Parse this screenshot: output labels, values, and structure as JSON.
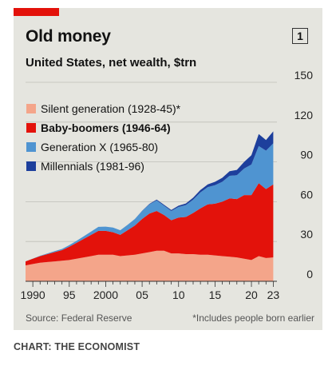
{
  "header": {
    "title": "Old money",
    "badge": "1"
  },
  "chart_data": {
    "type": "area",
    "stacked": true,
    "title": "Old money",
    "subtitle": "United States, net wealth, $trn",
    "xlabel": "",
    "ylabel": "",
    "xlim": [
      1989,
      2023.5
    ],
    "ylim": [
      0,
      150
    ],
    "x_ticks": [
      1990,
      1991,
      1992,
      1993,
      1994,
      1995,
      1996,
      1997,
      1998,
      1999,
      2000,
      2001,
      2002,
      2003,
      2004,
      2005,
      2006,
      2007,
      2008,
      2009,
      2010,
      2011,
      2012,
      2013,
      2014,
      2015,
      2016,
      2017,
      2018,
      2019,
      2020,
      2021,
      2022,
      2023
    ],
    "x_tick_labels": [
      {
        "x": 1990,
        "label": "1990"
      },
      {
        "x": 1995,
        "label": "95"
      },
      {
        "x": 2000,
        "label": "2000"
      },
      {
        "x": 2005,
        "label": "05"
      },
      {
        "x": 2010,
        "label": "10"
      },
      {
        "x": 2015,
        "label": "15"
      },
      {
        "x": 2020,
        "label": "20"
      },
      {
        "x": 2023,
        "label": "23"
      }
    ],
    "y_ticks": [
      0,
      30,
      60,
      90,
      120,
      150
    ],
    "y_tick_labels": [
      "0",
      "30",
      "60",
      "90",
      "120",
      "150"
    ],
    "grid": true,
    "legend_position": "top-left",
    "x": [
      1989,
      1990,
      1991,
      1992,
      1993,
      1994,
      1995,
      1996,
      1997,
      1998,
      1999,
      2000,
      2001,
      2002,
      2003,
      2004,
      2005,
      2006,
      2007,
      2008,
      2009,
      2010,
      2011,
      2012,
      2013,
      2014,
      2015,
      2016,
      2017,
      2018,
      2019,
      2020,
      2021,
      2022,
      2023
    ],
    "series": [
      {
        "name": "Silent generation (1928-45)*",
        "color": "#f4a58a",
        "values": [
          12,
          13,
          14,
          14.5,
          15,
          15.5,
          16,
          17,
          18,
          19,
          20,
          20,
          20,
          19,
          19.5,
          20,
          21,
          22,
          23,
          23,
          21,
          21,
          20.5,
          20.5,
          20,
          20,
          19.5,
          19,
          18.5,
          18,
          17,
          16,
          19,
          17.5,
          18
        ]
      },
      {
        "name": "Baby-boomers (1946-64)",
        "color": "#e3120b",
        "values": [
          3,
          4,
          5,
          6,
          7,
          8,
          10,
          12,
          14,
          16,
          18,
          18,
          17,
          16,
          19,
          22,
          26,
          29,
          30,
          27,
          25,
          27,
          28,
          31,
          35,
          38,
          39,
          41,
          44,
          44,
          48,
          49,
          55,
          52,
          55
        ]
      },
      {
        "name": "Generation X (1965-80)",
        "color": "#4f94d1",
        "values": [
          0,
          0.1,
          0.3,
          0.5,
          0.7,
          0.9,
          1.2,
          1.5,
          2,
          2.5,
          3,
          3.2,
          3.5,
          3.5,
          4,
          5,
          6,
          7,
          8,
          7,
          7,
          8,
          9,
          10,
          12,
          13,
          14,
          15,
          17,
          18,
          20,
          23,
          28,
          29,
          31
        ]
      },
      {
        "name": "Millennials (1981-96)",
        "color": "#1d3f9c",
        "values": [
          0,
          0,
          0,
          0,
          0,
          0,
          0,
          0,
          0,
          0,
          0,
          0,
          0,
          0,
          0,
          0,
          0.2,
          0.4,
          0.6,
          0.7,
          0.8,
          1,
          1.2,
          1.5,
          1.8,
          2,
          2.5,
          3,
          3.5,
          4,
          5,
          7,
          9,
          8,
          9
        ]
      }
    ],
    "source": "Source: Federal Reserve",
    "footnote": "*Includes people born earlier"
  },
  "credit": "CHART: THE ECONOMIST",
  "colors": {
    "accent": "#e3120b",
    "panel": "#e5e5df"
  }
}
